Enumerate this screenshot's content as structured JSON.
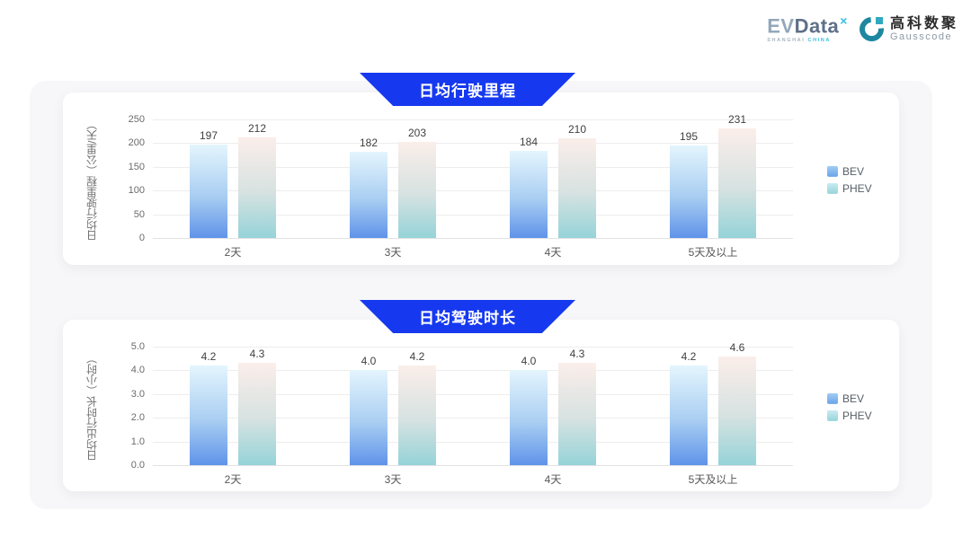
{
  "logos": {
    "evdata_ev": "EV",
    "evdata_data": "Data",
    "evdata_sup": "×",
    "evdata_sub1": "SHANGHAI",
    "evdata_sub2": "CHINA",
    "gausscode_cn": "高科数聚",
    "gausscode_en": "Gausscode"
  },
  "colors": {
    "banner_blue": "#1639f0",
    "panel_bg": "#f7f7f9",
    "bev_bar": [
      "#e4f5fd",
      "#a9cef2",
      "#5f93e9"
    ],
    "phev_bar": [
      "#fbeeea",
      "#d6e2e1",
      "#95d3d8"
    ],
    "legend_bev": [
      "#a2cef2",
      "#6ba3ea"
    ],
    "legend_phev": [
      "#c9ecf2",
      "#96d4da"
    ]
  },
  "chart_data": [
    {
      "type": "bar",
      "title": "日均行驶里程",
      "ylabel": "日均行驶里程（公里/天）",
      "xlabel": "",
      "categories": [
        "2天",
        "3天",
        "4天",
        "5天及以上"
      ],
      "series": [
        {
          "name": "BEV",
          "values": [
            197,
            182,
            184,
            195
          ],
          "labels": [
            "197",
            "182",
            "184",
            "195"
          ]
        },
        {
          "name": "PHEV",
          "values": [
            212,
            203,
            210,
            231
          ],
          "labels": [
            "212",
            "203",
            "210",
            "231"
          ]
        }
      ],
      "ylim": [
        0,
        250
      ],
      "yticks": [
        0,
        50,
        100,
        150,
        200,
        250
      ],
      "ytick_labels": [
        "0",
        "50",
        "100",
        "150",
        "200",
        "250"
      ],
      "grid": true,
      "legend": [
        "BEV",
        "PHEV"
      ],
      "legend_position": "right"
    },
    {
      "type": "bar",
      "title": "日均驾驶时长",
      "ylabel": "日均出行时长（小时）",
      "xlabel": "",
      "categories": [
        "2天",
        "3天",
        "4天",
        "5天及以上"
      ],
      "series": [
        {
          "name": "BEV",
          "values": [
            4.2,
            4.0,
            4.0,
            4.2
          ],
          "labels": [
            "4.2",
            "4.0",
            "4.0",
            "4.2"
          ]
        },
        {
          "name": "PHEV",
          "values": [
            4.3,
            4.2,
            4.3,
            4.6
          ],
          "labels": [
            "4.3",
            "4.2",
            "4.3",
            "4.6"
          ]
        }
      ],
      "ylim": [
        0,
        5
      ],
      "yticks": [
        0,
        1,
        2,
        3,
        4,
        5
      ],
      "ytick_labels": [
        "0.0",
        "1.0",
        "2.0",
        "3.0",
        "4.0",
        "5.0"
      ],
      "grid": true,
      "legend": [
        "BEV",
        "PHEV"
      ],
      "legend_position": "right"
    }
  ]
}
